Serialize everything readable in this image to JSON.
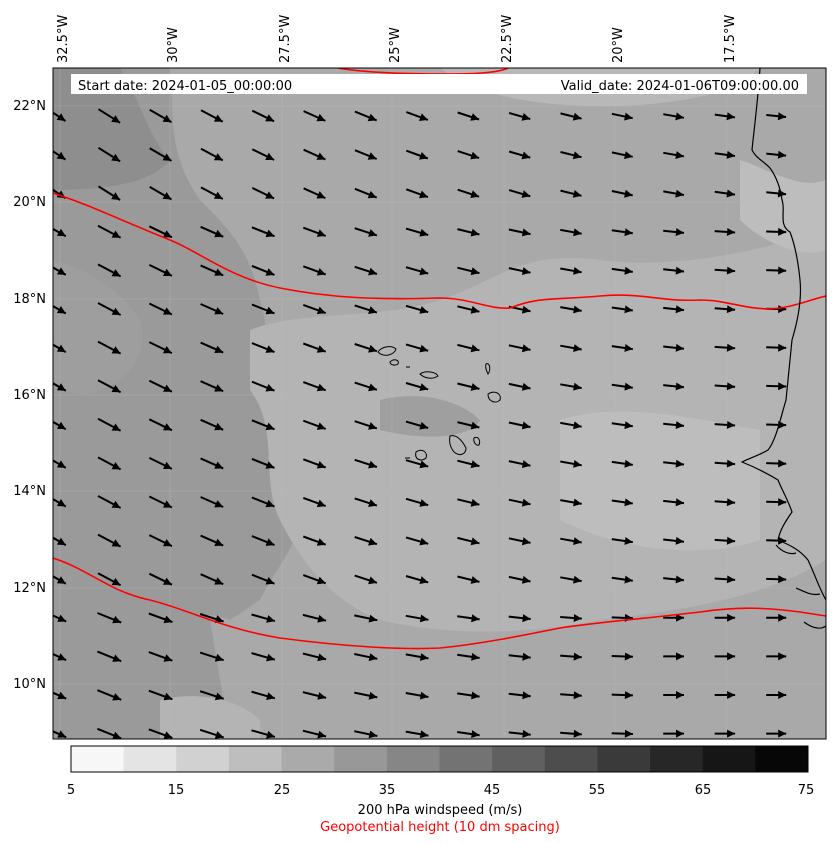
{
  "banner": {
    "start_date": "Start date: 2024-01-05_00:00:00",
    "valid_date": "Valid_date: 2024-01-06T09:00:00.00"
  },
  "axes": {
    "lon_labels": [
      "32.5°W",
      "30°W",
      "27.5°W",
      "25°W",
      "22.5°W",
      "20°W",
      "17.5°W"
    ],
    "lat_labels": [
      "22°N",
      "20°N",
      "18°N",
      "16°N",
      "14°N",
      "12°N",
      "10°N"
    ]
  },
  "colorbar": {
    "ticks": [
      "5",
      "15",
      "25",
      "35",
      "45",
      "55",
      "65",
      "75"
    ],
    "colors": [
      "#f7f7f7",
      "#e4e4e4",
      "#d1d1d1",
      "#bebebe",
      "#aaaaaa",
      "#989898",
      "#868686",
      "#737373",
      "#606060",
      "#4d4d4d",
      "#3a3a3a",
      "#272727",
      "#161616",
      "#070707"
    ],
    "label": "200 hPa windspeed (m/s)",
    "sublabel": "Geopotential height (10 dm spacing)",
    "sublabel_color": "#ff0000"
  },
  "map": {
    "contour_color": "#ff0000",
    "arrow_color": "#000000",
    "coast_color": "#000000"
  }
}
